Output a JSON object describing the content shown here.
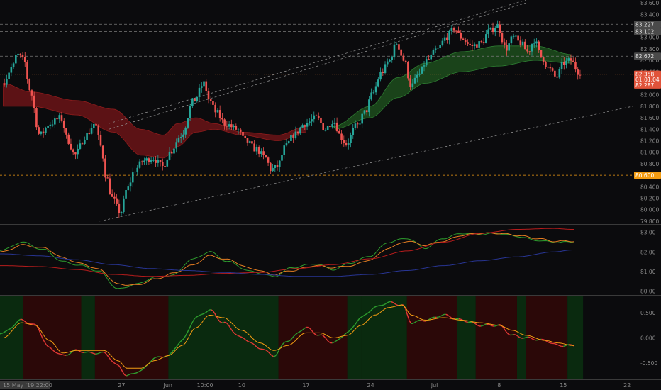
{
  "colors": {
    "background": "#0b0b0d",
    "up": "#26a69a",
    "down": "#ef5350",
    "ma_fast": "#2e9e2e",
    "ma_slow": "#d84315",
    "ma_long": "#b71c1c",
    "ma_blue": "#283593",
    "cloud_red": "#6b1418",
    "cloud_green": "#1d4d1d",
    "level_orange": "#f39c12"
  },
  "price_axis": {
    "ticks": [
      "83.600",
      "83.400",
      "83.200",
      "83.000",
      "82.800",
      "82.600",
      "82.400",
      "82.200",
      "82.000",
      "81.800",
      "81.600",
      "81.400",
      "81.200",
      "81.000",
      "80.800",
      "80.600",
      "80.400",
      "80.200",
      "80.000",
      "79.800"
    ],
    "badges": [
      {
        "label": "83.227",
        "value": 83.227,
        "style": "gray"
      },
      {
        "label": "83.102",
        "value": 83.102,
        "style": "gray"
      },
      {
        "label": "82.672",
        "value": 82.672,
        "style": "gray"
      },
      {
        "label": "82.358",
        "value": 82.358,
        "style": "red"
      },
      {
        "label": "01:01:04",
        "value": 82.265,
        "style": "red"
      },
      {
        "label": "82.287",
        "value": 82.17,
        "style": "red"
      },
      {
        "label": "80.600",
        "value": 80.6,
        "style": "orange"
      }
    ]
  },
  "osc1_axis": {
    "ticks": [
      "83.00",
      "82.00",
      "81.00",
      "80.00"
    ]
  },
  "osc2_axis": {
    "ticks": [
      "0.500",
      "0.000",
      "-0.500"
    ]
  },
  "x_axis": {
    "ticks": [
      "27",
      "Jun",
      "10:00",
      "10",
      "17",
      "24",
      "Jul",
      "8",
      "15",
      "22"
    ],
    "cursor_label": "15 May '19  22:00"
  },
  "chart_data": {
    "type": "candlestick",
    "ylim": [
      79.75,
      83.65
    ],
    "x_range_days": [
      -0.35,
      68.6
    ],
    "x_ticks_days": [
      12.9,
      17.95,
      22.0,
      26.0,
      33.0,
      40.05,
      47.0,
      54.05,
      61.05,
      68.0
    ],
    "level_lines": [
      83.227,
      83.102,
      82.672,
      82.358,
      80.6
    ],
    "price_anchors": [
      [
        0,
        82.2
      ],
      [
        1.2,
        82.5
      ],
      [
        1.6,
        82.7
      ],
      [
        2.4,
        82.6
      ],
      [
        3.0,
        82.1
      ],
      [
        4.1,
        81.3
      ],
      [
        5.2,
        81.5
      ],
      [
        6.4,
        81.6
      ],
      [
        7.2,
        81.2
      ],
      [
        7.9,
        80.95
      ],
      [
        9.2,
        81.3
      ],
      [
        10.1,
        81.5
      ],
      [
        10.8,
        81.1
      ],
      [
        11.3,
        80.6
      ],
      [
        12.0,
        80.2
      ],
      [
        12.9,
        79.95
      ],
      [
        13.6,
        80.35
      ],
      [
        14.5,
        80.7
      ],
      [
        15.4,
        80.85
      ],
      [
        16.4,
        80.9
      ],
      [
        17.5,
        80.75
      ],
      [
        18.3,
        81.0
      ],
      [
        19.5,
        81.3
      ],
      [
        20.9,
        81.9
      ],
      [
        22.0,
        82.2
      ],
      [
        22.6,
        81.9
      ],
      [
        23.3,
        81.7
      ],
      [
        24.3,
        81.5
      ],
      [
        25.6,
        81.4
      ],
      [
        26.5,
        81.2
      ],
      [
        27.7,
        81.05
      ],
      [
        28.7,
        80.9
      ],
      [
        29.3,
        80.7
      ],
      [
        30.0,
        80.75
      ],
      [
        30.9,
        81.1
      ],
      [
        31.8,
        81.3
      ],
      [
        33.0,
        81.5
      ],
      [
        34.3,
        81.6
      ],
      [
        35.2,
        81.4
      ],
      [
        36.1,
        81.55
      ],
      [
        37.0,
        81.25
      ],
      [
        37.5,
        81.15
      ],
      [
        38.6,
        81.45
      ],
      [
        39.6,
        81.7
      ],
      [
        40.3,
        82.0
      ],
      [
        41.4,
        82.4
      ],
      [
        42.2,
        82.6
      ],
      [
        43.0,
        82.9
      ],
      [
        43.8,
        82.6
      ],
      [
        44.6,
        82.15
      ],
      [
        45.4,
        82.35
      ],
      [
        46.3,
        82.6
      ],
      [
        47.5,
        82.8
      ],
      [
        48.4,
        83.0
      ],
      [
        49.3,
        83.15
      ],
      [
        50.0,
        83.0
      ],
      [
        51.1,
        82.85
      ],
      [
        52.3,
        82.9
      ],
      [
        53.0,
        83.1
      ],
      [
        54.0,
        83.2
      ],
      [
        54.9,
        82.8
      ],
      [
        55.7,
        83.0
      ],
      [
        56.5,
        82.9
      ],
      [
        57.3,
        82.75
      ],
      [
        58.0,
        82.95
      ],
      [
        58.8,
        82.65
      ],
      [
        59.6,
        82.45
      ],
      [
        60.4,
        82.3
      ],
      [
        61.2,
        82.55
      ],
      [
        62.0,
        82.6
      ],
      [
        62.8,
        82.4
      ]
    ],
    "ma_anchors": {
      "red_upper": [
        [
          0,
          82.2
        ],
        [
          3,
          82.05
        ],
        [
          8,
          81.9
        ],
        [
          12,
          81.75
        ],
        [
          15,
          81.4
        ],
        [
          17.5,
          81.3
        ],
        [
          19,
          81.5
        ],
        [
          21,
          81.6
        ],
        [
          23,
          81.5
        ],
        [
          26,
          81.35
        ],
        [
          30,
          81.3
        ],
        [
          33,
          81.45
        ]
      ],
      "red_lower": [
        [
          0,
          81.8
        ],
        [
          3,
          81.8
        ],
        [
          8,
          81.65
        ],
        [
          12,
          81.35
        ],
        [
          15,
          80.95
        ],
        [
          17.5,
          80.9
        ],
        [
          19,
          81.1
        ],
        [
          21,
          81.35
        ],
        [
          23,
          81.4
        ],
        [
          26,
          81.3
        ],
        [
          30,
          81.2
        ],
        [
          33,
          81.35
        ]
      ],
      "green_upper": [
        [
          36,
          81.45
        ],
        [
          40,
          81.8
        ],
        [
          43,
          82.3
        ],
        [
          46,
          82.55
        ],
        [
          50,
          82.75
        ],
        [
          54,
          82.85
        ],
        [
          58,
          82.85
        ],
        [
          62,
          82.7
        ]
      ],
      "green_lower": [
        [
          36,
          81.4
        ],
        [
          40,
          81.6
        ],
        [
          43,
          81.95
        ],
        [
          46,
          82.2
        ],
        [
          50,
          82.4
        ],
        [
          54,
          82.5
        ],
        [
          58,
          82.6
        ],
        [
          62,
          82.55
        ]
      ]
    },
    "trend_lines": [
      {
        "from": [
          10.5,
          79.8
        ],
        "to": [
          68.6,
          81.8
        ],
        "style": "dashed"
      },
      {
        "from": [
          11.5,
          81.5
        ],
        "to": [
          57.0,
          83.65
        ],
        "style": "dashed"
      },
      {
        "from": [
          11.5,
          81.4
        ],
        "to": [
          57.0,
          83.6
        ],
        "style": "dashed"
      }
    ],
    "osc1_ylim": [
      79.8,
      83.35
    ],
    "osc1_series": [
      {
        "color": "green",
        "anchors": [
          [
            0,
            82.1
          ],
          [
            2,
            82.5
          ],
          [
            4.5,
            82.1
          ],
          [
            6.5,
            81.5
          ],
          [
            8.5,
            81.3
          ],
          [
            10.5,
            81.0
          ],
          [
            12.5,
            80.1
          ],
          [
            14.5,
            80.35
          ],
          [
            16.5,
            80.7
          ],
          [
            18.5,
            80.8
          ],
          [
            20.5,
            81.6
          ],
          [
            22.5,
            82.0
          ],
          [
            24.5,
            81.5
          ],
          [
            27,
            81.0
          ],
          [
            29.5,
            80.75
          ],
          [
            31.5,
            81.2
          ],
          [
            34,
            81.4
          ],
          [
            36,
            81.1
          ],
          [
            38,
            81.45
          ],
          [
            40,
            81.8
          ],
          [
            42,
            82.5
          ],
          [
            44,
            82.7
          ],
          [
            46,
            82.2
          ],
          [
            48,
            82.7
          ],
          [
            50,
            82.95
          ],
          [
            52,
            82.9
          ],
          [
            54,
            82.95
          ],
          [
            56,
            82.8
          ],
          [
            58,
            82.6
          ],
          [
            60,
            82.5
          ],
          [
            62,
            82.5
          ]
        ]
      },
      {
        "color": "orange",
        "anchors": [
          [
            0,
            82.0
          ],
          [
            2,
            82.35
          ],
          [
            4.5,
            82.2
          ],
          [
            6.5,
            81.7
          ],
          [
            8.5,
            81.4
          ],
          [
            10.5,
            81.1
          ],
          [
            12.5,
            80.35
          ],
          [
            14.5,
            80.3
          ],
          [
            16.5,
            80.6
          ],
          [
            18.5,
            80.9
          ],
          [
            20.5,
            81.3
          ],
          [
            22.5,
            81.8
          ],
          [
            24.5,
            81.6
          ],
          [
            27,
            81.15
          ],
          [
            29.5,
            80.85
          ],
          [
            31.5,
            81.05
          ],
          [
            34,
            81.3
          ],
          [
            36,
            81.2
          ],
          [
            38,
            81.3
          ],
          [
            40,
            81.6
          ],
          [
            42,
            82.2
          ],
          [
            44,
            82.55
          ],
          [
            46,
            82.35
          ],
          [
            48,
            82.55
          ],
          [
            50,
            82.85
          ],
          [
            52,
            82.95
          ],
          [
            54,
            82.95
          ],
          [
            56,
            82.85
          ],
          [
            58,
            82.7
          ],
          [
            60,
            82.55
          ],
          [
            62,
            82.55
          ]
        ]
      },
      {
        "color": "red",
        "anchors": [
          [
            0,
            81.3
          ],
          [
            4,
            81.25
          ],
          [
            8,
            81.1
          ],
          [
            12,
            80.85
          ],
          [
            16,
            80.75
          ],
          [
            20,
            80.8
          ],
          [
            24,
            80.9
          ],
          [
            28,
            80.95
          ],
          [
            32,
            81.15
          ],
          [
            36,
            81.35
          ],
          [
            40,
            81.65
          ],
          [
            44,
            82.05
          ],
          [
            48,
            82.5
          ],
          [
            52,
            82.95
          ],
          [
            56,
            83.15
          ],
          [
            60,
            83.2
          ],
          [
            62,
            83.15
          ]
        ]
      },
      {
        "color": "blue",
        "anchors": [
          [
            0,
            81.9
          ],
          [
            4,
            81.8
          ],
          [
            8,
            81.6
          ],
          [
            12,
            81.35
          ],
          [
            16,
            81.15
          ],
          [
            20,
            81.05
          ],
          [
            24,
            80.95
          ],
          [
            28,
            80.85
          ],
          [
            32,
            80.75
          ],
          [
            36,
            80.75
          ],
          [
            40,
            80.85
          ],
          [
            44,
            81.05
          ],
          [
            48,
            81.3
          ],
          [
            52,
            81.55
          ],
          [
            56,
            81.75
          ],
          [
            60,
            82.0
          ],
          [
            62,
            82.1
          ]
        ]
      }
    ],
    "osc2_ylim": [
      -0.82,
      0.82
    ],
    "osc2_series": [
      {
        "color": "green",
        "anchors": [
          [
            0,
            0.1
          ],
          [
            2,
            0.35
          ],
          [
            3.5,
            0.25
          ],
          [
            5,
            -0.2
          ],
          [
            6.5,
            -0.35
          ],
          [
            8,
            -0.25
          ],
          [
            9.5,
            -0.3
          ],
          [
            11,
            -0.3
          ],
          [
            12.5,
            -0.55
          ],
          [
            13.5,
            -0.75
          ],
          [
            15,
            -0.65
          ],
          [
            16.5,
            -0.4
          ],
          [
            18,
            -0.35
          ],
          [
            19.5,
            -0.05
          ],
          [
            21,
            0.4
          ],
          [
            22.5,
            0.55
          ],
          [
            24,
            0.3
          ],
          [
            26,
            0.0
          ],
          [
            28,
            -0.2
          ],
          [
            29.5,
            -0.35
          ],
          [
            31,
            -0.05
          ],
          [
            33,
            0.2
          ],
          [
            34.5,
            0.05
          ],
          [
            36,
            -0.1
          ],
          [
            37.5,
            0.1
          ],
          [
            39,
            0.4
          ],
          [
            40.5,
            0.6
          ],
          [
            42,
            0.7
          ],
          [
            43.5,
            0.65
          ],
          [
            44.5,
            0.3
          ],
          [
            46,
            0.35
          ],
          [
            48,
            0.45
          ],
          [
            50,
            0.35
          ],
          [
            52,
            0.25
          ],
          [
            54,
            0.25
          ],
          [
            55.5,
            0.05
          ],
          [
            57,
            0.0
          ],
          [
            59,
            -0.05
          ],
          [
            60.5,
            -0.15
          ],
          [
            62,
            -0.15
          ]
        ]
      },
      {
        "color": "orange",
        "anchors": [
          [
            0,
            0.0
          ],
          [
            2,
            0.3
          ],
          [
            3.5,
            0.25
          ],
          [
            5,
            -0.05
          ],
          [
            6.5,
            -0.3
          ],
          [
            8,
            -0.25
          ],
          [
            9.5,
            -0.25
          ],
          [
            11,
            -0.25
          ],
          [
            12.5,
            -0.45
          ],
          [
            13.5,
            -0.6
          ],
          [
            15,
            -0.6
          ],
          [
            16.5,
            -0.45
          ],
          [
            18,
            -0.35
          ],
          [
            19.5,
            -0.15
          ],
          [
            21,
            0.2
          ],
          [
            22.5,
            0.45
          ],
          [
            24,
            0.4
          ],
          [
            26,
            0.15
          ],
          [
            28,
            -0.1
          ],
          [
            29.5,
            -0.25
          ],
          [
            31,
            -0.15
          ],
          [
            33,
            0.1
          ],
          [
            34.5,
            0.1
          ],
          [
            36,
            0.0
          ],
          [
            37.5,
            0.05
          ],
          [
            39,
            0.25
          ],
          [
            40.5,
            0.45
          ],
          [
            42,
            0.6
          ],
          [
            43.5,
            0.65
          ],
          [
            44.5,
            0.45
          ],
          [
            46,
            0.35
          ],
          [
            48,
            0.4
          ],
          [
            50,
            0.35
          ],
          [
            52,
            0.3
          ],
          [
            54,
            0.25
          ],
          [
            55.5,
            0.15
          ],
          [
            57,
            0.05
          ],
          [
            59,
            -0.05
          ],
          [
            60.5,
            -0.1
          ],
          [
            62,
            -0.15
          ]
        ]
      }
    ],
    "osc2_regions": [
      [
        -0.35,
        2.2,
        "green"
      ],
      [
        2.2,
        8.5,
        "red"
      ],
      [
        8.5,
        10.0,
        "green"
      ],
      [
        10.0,
        18.0,
        "red"
      ],
      [
        18.0,
        30.0,
        "green"
      ],
      [
        30.0,
        37.5,
        "red"
      ],
      [
        37.5,
        39.0,
        "green"
      ],
      [
        39.0,
        44.0,
        "green"
      ],
      [
        44.0,
        49.5,
        "red"
      ],
      [
        49.5,
        51.5,
        "green"
      ],
      [
        51.5,
        56.0,
        "red"
      ],
      [
        56.0,
        57.0,
        "green"
      ],
      [
        57.0,
        61.5,
        "red"
      ],
      [
        61.5,
        63.2,
        "green"
      ]
    ]
  }
}
